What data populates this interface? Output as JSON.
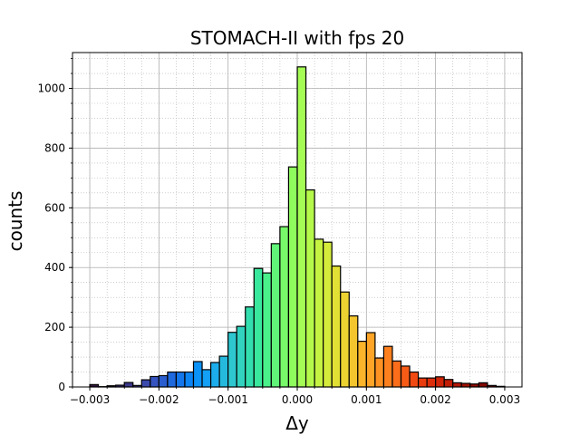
{
  "chart_data": {
    "type": "bar",
    "title": "STOMACH-II with fps 20",
    "xlabel": "Δy",
    "ylabel": "counts",
    "xlim": [
      -0.00325,
      0.00325
    ],
    "ylim": [
      0,
      1120
    ],
    "grid": true,
    "bin_width": 0.000125,
    "x": [
      -0.002938,
      -0.002813,
      -0.002688,
      -0.002563,
      -0.002438,
      -0.002313,
      -0.002188,
      -0.002063,
      -0.001938,
      -0.001813,
      -0.001688,
      -0.001563,
      -0.001438,
      -0.001313,
      -0.001188,
      -0.001063,
      -0.000938,
      -0.000813,
      -0.000688,
      -0.000563,
      -0.000438,
      -0.000313,
      -0.000188,
      -6.3e-05,
      6.3e-05,
      0.000188,
      0.000313,
      0.000438,
      0.000563,
      0.000688,
      0.000813,
      0.000938,
      0.001063,
      0.001188,
      0.001313,
      0.001438,
      0.001563,
      0.001688,
      0.001813,
      0.001938,
      0.002063,
      0.002188,
      0.002313,
      0.002438,
      0.002563,
      0.002688,
      0.002813,
      0.002938
    ],
    "values": [
      8,
      1,
      4,
      6,
      15,
      5,
      24,
      35,
      38,
      50,
      50,
      50,
      85,
      58,
      82,
      103,
      183,
      203,
      268,
      397,
      382,
      480,
      537,
      737,
      1072,
      660,
      495,
      485,
      405,
      318,
      238,
      153,
      182,
      97,
      136,
      87,
      70,
      50,
      30,
      30,
      34,
      25,
      14,
      12,
      10,
      14,
      5,
      2
    ],
    "colors": [
      "#30123b",
      "#321a4e",
      "#352460",
      "#372d74",
      "#3a3888",
      "#3b419b",
      "#3c4aad",
      "#3453c0",
      "#2a5ed0",
      "#1f69df",
      "#1476ec",
      "#0c84f4",
      "#0b92f7",
      "#13a0f5",
      "#1cadec",
      "#25badd",
      "#2ec7d0",
      "#31d3bf",
      "#33deae",
      "#39e89c",
      "#4af08a",
      "#60f579",
      "#78f96a",
      "#8efc5d",
      "#a4fc54",
      "#b5f94a",
      "#c6f342",
      "#d5eb3b",
      "#e2e035",
      "#ecd331",
      "#f5c52e",
      "#fbb52a",
      "#fea426",
      "#fe9222",
      "#fd801e",
      "#fb6d1a",
      "#f75b16",
      "#f14a12",
      "#e83b0e",
      "#dd2e0b",
      "#d02508",
      "#c21d06",
      "#b31604",
      "#a31103",
      "#910c02",
      "#7f0902",
      "#6d0702",
      "#7a0403"
    ],
    "xticks": [
      "−0.003",
      "−0.002",
      "−0.001",
      "0.000",
      "0.001",
      "0.002",
      "0.003"
    ],
    "xtick_values": [
      -0.003,
      -0.002,
      -0.001,
      0,
      0.001,
      0.002,
      0.003
    ],
    "yticks": [
      "0",
      "200",
      "400",
      "600",
      "800",
      "1000"
    ],
    "ytick_values": [
      0,
      200,
      400,
      600,
      800,
      1000
    ]
  }
}
